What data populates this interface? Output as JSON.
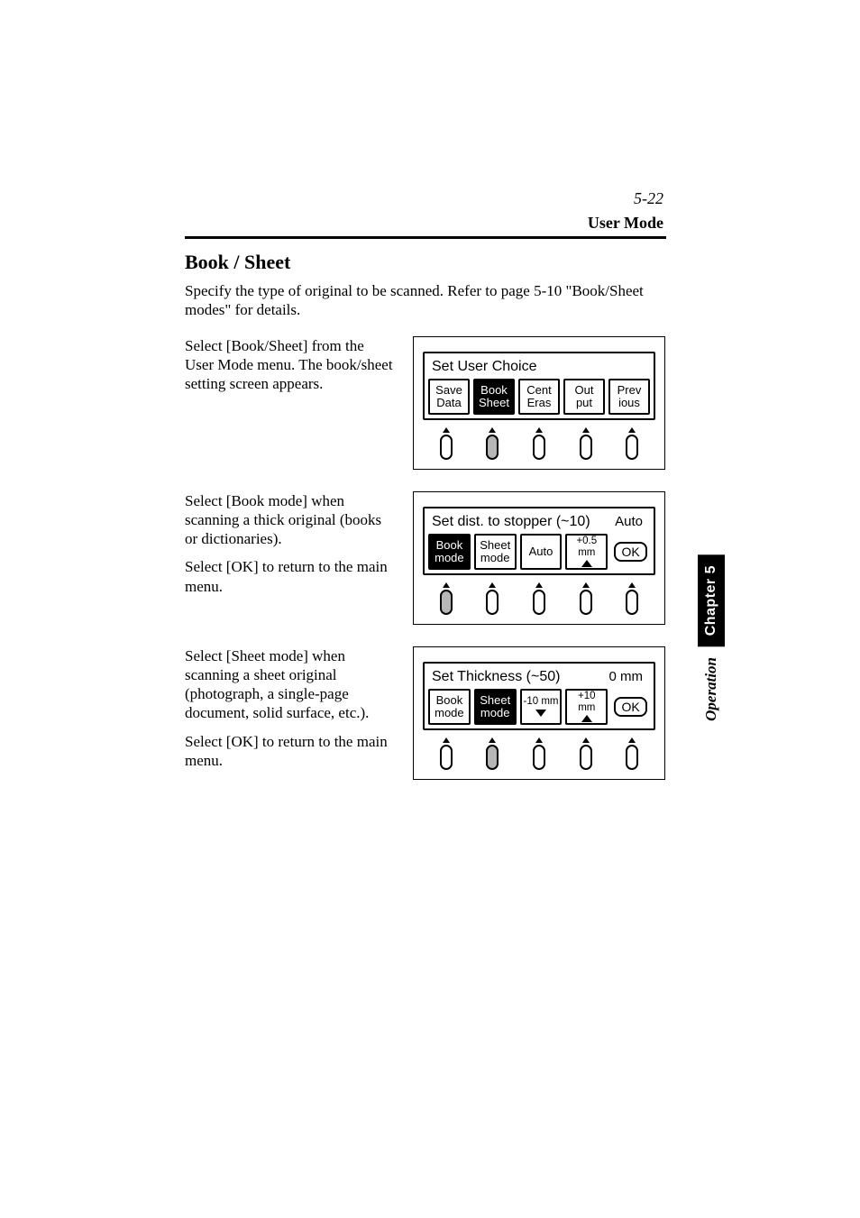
{
  "page_number": "5-22",
  "header_label": "User Mode",
  "section_title": "Book / Sheet",
  "intro": "Specify the type of original to be scanned. Refer to page 5-10 \"Book/Sheet modes\" for details.",
  "side_tab": {
    "chapter": "Chapter 5",
    "section": "Operation"
  },
  "colors": {
    "page_bg": "#ffffff",
    "text": "#000000",
    "rule": "#000000",
    "selected_bg": "#000000",
    "selected_fg": "#ffffff",
    "active_button_fill": "#b6b6b6"
  },
  "typography": {
    "body_family": "Times New Roman",
    "panel_family": "Arial",
    "section_title_pt": 22,
    "body_pt": 17,
    "panel_pt": 15
  },
  "block1": {
    "left_text": "Select [Book/Sheet] from the User Mode menu.  The book/sheet setting screen appears.",
    "panel": {
      "type": "lcd-menu",
      "title": "Set User Choice",
      "right_value": "",
      "buttons": [
        {
          "line1": "Save",
          "line2": "Data",
          "selected": false,
          "style": "text"
        },
        {
          "line1": "Book",
          "line2": "Sheet",
          "selected": true,
          "style": "text"
        },
        {
          "line1": "Cent",
          "line2": "Eras",
          "selected": false,
          "style": "text"
        },
        {
          "line1": "Out",
          "line2": "put",
          "selected": false,
          "style": "text"
        },
        {
          "line1": "Prev",
          "line2": "ious",
          "selected": false,
          "style": "text"
        }
      ],
      "active_phys_index": 1
    }
  },
  "block2": {
    "left_text_1": "Select [Book mode] when scanning a thick original (books or dictionaries).",
    "left_text_2": "Select [OK] to return to the main menu.",
    "panel": {
      "type": "lcd-menu",
      "title": "Set dist. to stopper (~10)",
      "right_value": "Auto",
      "buttons": [
        {
          "line1": "Book",
          "line2": "mode",
          "selected": true,
          "style": "text"
        },
        {
          "line1": "Sheet",
          "line2": "mode",
          "selected": false,
          "style": "text"
        },
        {
          "line1": "Auto",
          "line2": "",
          "selected": false,
          "style": "text"
        },
        {
          "line1": "+0.5 mm",
          "line2": "",
          "selected": false,
          "style": "small-up"
        },
        {
          "line1": "OK",
          "line2": "",
          "selected": false,
          "style": "ok"
        }
      ],
      "active_phys_index": 0
    }
  },
  "block3": {
    "left_text_1": "Select [Sheet mode] when scanning a sheet original (photograph, a single-page document, solid surface, etc.).",
    "left_text_2": "Select [OK] to return to the main menu.",
    "panel": {
      "type": "lcd-menu",
      "title": "Set Thickness (~50)",
      "right_value": "0 mm",
      "buttons": [
        {
          "line1": "Book",
          "line2": "mode",
          "selected": false,
          "style": "text"
        },
        {
          "line1": "Sheet",
          "line2": "mode",
          "selected": true,
          "style": "text"
        },
        {
          "line1": "-10 mm",
          "line2": "",
          "selected": false,
          "style": "small-down"
        },
        {
          "line1": "+10 mm",
          "line2": "",
          "selected": false,
          "style": "small-up"
        },
        {
          "line1": "OK",
          "line2": "",
          "selected": false,
          "style": "ok"
        }
      ],
      "active_phys_index": 1
    }
  }
}
